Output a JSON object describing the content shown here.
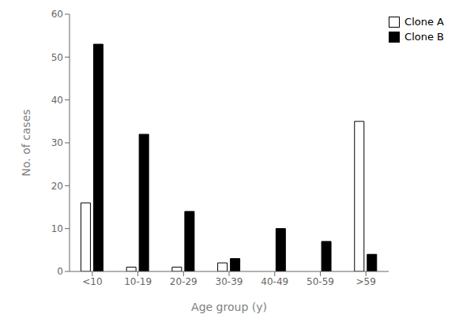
{
  "chart_data": {
    "type": "bar",
    "categories": [
      "<10",
      "10-19",
      "20-29",
      "30-39",
      "40-49",
      "50-59",
      ">59"
    ],
    "series": [
      {
        "name": "Clone A",
        "color": "#ffffff",
        "values": [
          16,
          1,
          1,
          2,
          0,
          0,
          35
        ]
      },
      {
        "name": "Clone B",
        "color": "#000000",
        "values": [
          53,
          32,
          14,
          3,
          10,
          7,
          4
        ]
      }
    ],
    "xlabel": "Age group (y)",
    "ylabel": "No. of cases",
    "ylim": [
      0,
      60
    ],
    "yticks": [
      0,
      10,
      20,
      30,
      40,
      50,
      60
    ],
    "legend": "upper right",
    "grid": false
  }
}
